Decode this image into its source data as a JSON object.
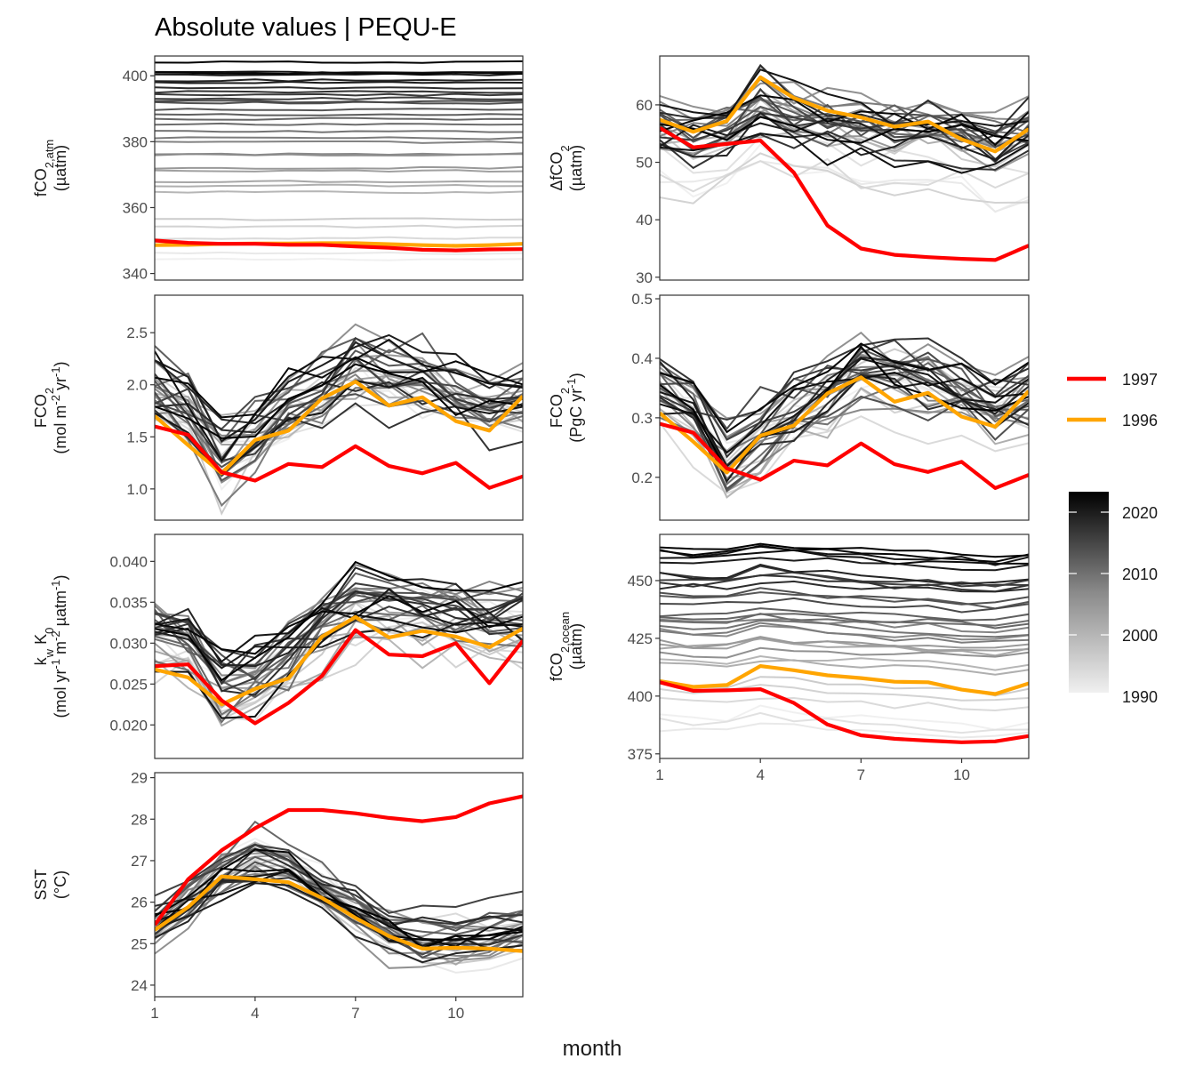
{
  "title": "Absolute values | PEQU-E",
  "xlabel": "month",
  "legend": {
    "items": [
      {
        "label": "1997",
        "color": "#ff0000"
      },
      {
        "label": "1996",
        "color": "#ffa500"
      }
    ],
    "colorbar": {
      "ticks": [
        "2020",
        "2010",
        "2000",
        "1990"
      ],
      "range": [
        1990,
        2023
      ],
      "low_color": "#f0f0f0",
      "high_color": "#000000"
    }
  },
  "chart_data": [
    {
      "type": "line",
      "panel": "fco2-atm",
      "ylabel_lines": [
        {
          "main": "fCO",
          "sub": "2,atm"
        },
        "(µatm)"
      ],
      "ylim": [
        338,
        406
      ],
      "yticks": [
        340,
        360,
        380,
        400
      ],
      "ytick_labels": [
        "340",
        "360",
        "380",
        "400"
      ],
      "xticks": [],
      "x": [
        1,
        2,
        3,
        4,
        5,
        6,
        7,
        8,
        9,
        10,
        11,
        12
      ],
      "background": {
        "shape": "flat",
        "base": [
          [
            1990,
            344
          ],
          [
            2000,
            369
          ],
          [
            2010,
            389
          ],
          [
            2023,
            403
          ]
        ],
        "amp": 0.6,
        "noise": 0.3,
        "jitter": 1.2
      },
      "series": [
        {
          "year": 1997,
          "color": "#ff0000",
          "values": [
            350.0,
            349.3,
            349.0,
            349.0,
            348.7,
            348.7,
            348.2,
            347.8,
            347.2,
            347.0,
            347.3,
            347.4
          ]
        },
        {
          "year": 1996,
          "color": "#ffa500",
          "values": [
            348.6,
            348.7,
            349.0,
            349.1,
            349.1,
            349.2,
            349.2,
            348.9,
            348.6,
            348.4,
            348.6,
            349.0
          ]
        }
      ]
    },
    {
      "type": "line",
      "panel": "delta-fco2",
      "ylabel_lines": [
        {
          "main": "ΔfCO",
          "sub": "2"
        },
        "(µatm)"
      ],
      "ylim": [
        29.5,
        68.5
      ],
      "yticks": [
        30,
        40,
        50,
        60
      ],
      "ytick_labels": [
        "30",
        "40",
        "50",
        "60"
      ],
      "xticks": [],
      "x": [
        1,
        2,
        3,
        4,
        5,
        6,
        7,
        8,
        9,
        10,
        11,
        12
      ],
      "background": {
        "shape": "hump",
        "shape_values": [
          -1,
          -2,
          -1,
          3,
          1.5,
          0,
          -1,
          -1.5,
          -1,
          -2,
          -4,
          -1
        ],
        "base": [
          [
            1990,
            46
          ],
          [
            2000,
            55
          ],
          [
            2010,
            58
          ],
          [
            2023,
            54
          ]
        ],
        "amp": 1.0,
        "noise": 2.5,
        "jitter": 5
      },
      "series": [
        {
          "year": 1997,
          "color": "#ff0000",
          "values": [
            56.0,
            52.6,
            53.2,
            53.8,
            48.2,
            39.0,
            35.0,
            33.9,
            33.5,
            33.2,
            33.0,
            35.5
          ]
        },
        {
          "year": 1996,
          "color": "#ffa500",
          "values": [
            57.4,
            55.3,
            57.2,
            64.8,
            61.2,
            59.0,
            57.8,
            56.2,
            57.1,
            54.0,
            51.9,
            55.8
          ]
        }
      ]
    },
    {
      "type": "line",
      "panel": "fco2-flux-area",
      "ylabel_lines": [
        {
          "main": "FCO",
          "sub": "2"
        },
        {
          "rich": [
            [
              "(mol m",
              ""
            ],
            [
              "-2",
              "sup"
            ],
            [
              " yr",
              ""
            ],
            [
              "-1",
              "sup"
            ],
            [
              ")",
              ""
            ]
          ]
        }
      ],
      "ylim": [
        0.7,
        2.86
      ],
      "yticks": [
        1.0,
        1.5,
        2.0,
        2.5
      ],
      "ytick_labels": [
        "1.0",
        "1.5",
        "2.0",
        "2.5"
      ],
      "xticks": [],
      "x": [
        1,
        2,
        3,
        4,
        5,
        6,
        7,
        8,
        9,
        10,
        11,
        12
      ],
      "background": {
        "shape": "dip",
        "shape_values": [
          0.2,
          0.0,
          -0.5,
          -0.25,
          0.0,
          0.15,
          0.4,
          0.3,
          0.25,
          0.15,
          0.0,
          0.1
        ],
        "base": [
          [
            1990,
            1.55
          ],
          [
            2000,
            1.7
          ],
          [
            2010,
            1.75
          ],
          [
            2023,
            1.8
          ]
        ],
        "amp": 1.0,
        "noise": 0.17,
        "jitter": 0.25
      },
      "series": [
        {
          "year": 1997,
          "color": "#ff0000",
          "values": [
            1.6,
            1.52,
            1.16,
            1.08,
            1.24,
            1.21,
            1.41,
            1.22,
            1.15,
            1.25,
            1.01,
            1.12
          ]
        },
        {
          "year": 1996,
          "color": "#ffa500",
          "values": [
            1.7,
            1.42,
            1.15,
            1.47,
            1.56,
            1.87,
            2.03,
            1.8,
            1.88,
            1.65,
            1.56,
            1.89
          ]
        }
      ]
    },
    {
      "type": "line",
      "panel": "fco2-flux-total",
      "ylabel_lines": [
        {
          "main": "FCO",
          "sub": "2"
        },
        {
          "rich": [
            [
              "(PgC yr",
              ""
            ],
            [
              "-1",
              "sup"
            ],
            [
              ")",
              ""
            ]
          ]
        }
      ],
      "ylim": [
        0.128,
        0.506
      ],
      "yticks": [
        0.2,
        0.3,
        0.4,
        0.5
      ],
      "ytick_labels": [
        "0.2",
        "0.3",
        "0.4",
        "0.5"
      ],
      "xticks": [],
      "x": [
        1,
        2,
        3,
        4,
        5,
        6,
        7,
        8,
        9,
        10,
        11,
        12
      ],
      "background": {
        "shape": "dip",
        "shape_values": [
          0.035,
          0.0,
          -0.09,
          -0.045,
          0.0,
          0.025,
          0.07,
          0.055,
          0.045,
          0.025,
          0.0,
          0.02
        ],
        "base": [
          [
            1990,
            0.28
          ],
          [
            2000,
            0.31
          ],
          [
            2010,
            0.32
          ],
          [
            2023,
            0.33
          ]
        ],
        "amp": 1.0,
        "noise": 0.03,
        "jitter": 0.045
      },
      "series": [
        {
          "year": 1997,
          "color": "#ff0000",
          "values": [
            0.29,
            0.275,
            0.215,
            0.196,
            0.228,
            0.22,
            0.257,
            0.222,
            0.209,
            0.226,
            0.182,
            0.204
          ]
        },
        {
          "year": 1996,
          "color": "#ffa500",
          "values": [
            0.308,
            0.26,
            0.208,
            0.27,
            0.287,
            0.341,
            0.368,
            0.327,
            0.342,
            0.302,
            0.285,
            0.345
          ]
        }
      ]
    },
    {
      "type": "line",
      "panel": "kw-k0",
      "ylabel_lines": [
        {
          "rich": [
            [
              "k",
              ""
            ],
            [
              "w",
              "sub"
            ],
            [
              " K",
              ""
            ],
            [
              "0",
              "sub"
            ]
          ]
        },
        {
          "rich": [
            [
              "(mol yr",
              ""
            ],
            [
              "-1",
              "sup"
            ],
            [
              " m",
              ""
            ],
            [
              "-2",
              "sup"
            ],
            [
              " µatm",
              ""
            ],
            [
              "-1",
              "sup"
            ],
            [
              ")",
              ""
            ]
          ]
        }
      ],
      "ylim": [
        0.0159,
        0.0433
      ],
      "yticks": [
        0.02,
        0.025,
        0.03,
        0.035,
        0.04
      ],
      "ytick_labels": [
        "0.020",
        "0.025",
        "0.030",
        "0.035",
        "0.040"
      ],
      "xticks": [],
      "x": [
        1,
        2,
        3,
        4,
        5,
        6,
        7,
        8,
        9,
        10,
        11,
        12
      ],
      "background": {
        "shape": "dip",
        "shape_values": [
          0.0,
          -0.001,
          -0.006,
          -0.005,
          -0.003,
          0.001,
          0.004,
          0.004,
          0.003,
          0.003,
          0.002,
          0.002
        ],
        "base": [
          [
            1990,
            0.029
          ],
          [
            2000,
            0.03
          ],
          [
            2010,
            0.0305
          ],
          [
            2023,
            0.031
          ]
        ],
        "amp": 1.0,
        "noise": 0.0022,
        "jitter": 0.003
      },
      "series": [
        {
          "year": 1997,
          "color": "#ff0000",
          "values": [
            0.0272,
            0.0274,
            0.023,
            0.0202,
            0.0227,
            0.026,
            0.0316,
            0.0286,
            0.0284,
            0.03,
            0.0251,
            0.0303
          ]
        },
        {
          "year": 1996,
          "color": "#ffa500",
          "values": [
            0.0268,
            0.0258,
            0.0225,
            0.0244,
            0.0257,
            0.0308,
            0.0332,
            0.0307,
            0.0315,
            0.0308,
            0.0295,
            0.0318
          ]
        }
      ]
    },
    {
      "type": "line",
      "panel": "fco2-ocean",
      "ylabel_lines": [
        {
          "main": "fCO",
          "sub": "2,ocean"
        },
        "(µatm)"
      ],
      "ylim": [
        373,
        470
      ],
      "yticks": [
        375,
        400,
        425,
        450
      ],
      "ytick_labels": [
        "375",
        "400",
        "425",
        "450"
      ],
      "xticks": [
        1,
        4,
        7,
        10
      ],
      "xtick_labels": [
        "1",
        "4",
        "7",
        "10"
      ],
      "x": [
        1,
        2,
        3,
        4,
        5,
        6,
        7,
        8,
        9,
        10,
        11,
        12
      ],
      "background": {
        "shape": "hump",
        "shape_values": [
          0,
          -1,
          -1,
          2,
          1,
          0,
          -1,
          -2,
          -2,
          -3,
          -4,
          -2
        ],
        "base": [
          [
            1990,
            388
          ],
          [
            2000,
            418
          ],
          [
            2010,
            440
          ],
          [
            2023,
            462
          ]
        ],
        "amp": 1.0,
        "noise": 1.5,
        "jitter": 6
      },
      "series": [
        {
          "year": 1997,
          "color": "#ff0000",
          "values": [
            406.0,
            402.3,
            402.5,
            403.0,
            397.0,
            387.7,
            383.0,
            381.5,
            380.7,
            380.0,
            380.4,
            382.7
          ]
        },
        {
          "year": 1996,
          "color": "#ffa500",
          "values": [
            406.5,
            404.0,
            404.8,
            413.0,
            411.2,
            409.0,
            407.8,
            406.2,
            406.0,
            402.8,
            400.9,
            405.5
          ]
        }
      ]
    },
    {
      "type": "line",
      "panel": "sst",
      "ylabel_lines": [
        "SST",
        "(°C)"
      ],
      "ylim": [
        23.72,
        29.12
      ],
      "yticks": [
        24,
        25,
        26,
        27,
        28,
        29
      ],
      "ytick_labels": [
        "24",
        "25",
        "26",
        "27",
        "28",
        "29"
      ],
      "xticks": [
        1,
        4,
        7,
        10
      ],
      "xtick_labels": [
        "1",
        "4",
        "7",
        "10"
      ],
      "x": [
        1,
        2,
        3,
        4,
        5,
        6,
        7,
        8,
        9,
        10,
        11,
        12
      ],
      "background": {
        "shape": "hump",
        "shape_values": [
          -0.6,
          0.0,
          0.6,
          1.0,
          0.8,
          0.3,
          -0.3,
          -0.8,
          -1.0,
          -1.0,
          -0.9,
          -0.7
        ],
        "base": [
          [
            1990,
            26.0
          ],
          [
            2000,
            26.0
          ],
          [
            2010,
            26.1
          ],
          [
            2023,
            26.1
          ]
        ],
        "amp": 1.0,
        "noise": 0.25,
        "jitter": 0.45
      },
      "series": [
        {
          "year": 1997,
          "color": "#ff0000",
          "values": [
            25.45,
            26.55,
            27.25,
            27.78,
            28.22,
            28.22,
            28.14,
            28.03,
            27.95,
            28.05,
            28.38,
            28.55
          ]
        },
        {
          "year": 1996,
          "color": "#ffa500",
          "values": [
            25.33,
            25.88,
            26.62,
            26.55,
            26.48,
            26.1,
            25.62,
            25.18,
            24.88,
            24.9,
            24.88,
            24.82
          ]
        }
      ]
    }
  ]
}
